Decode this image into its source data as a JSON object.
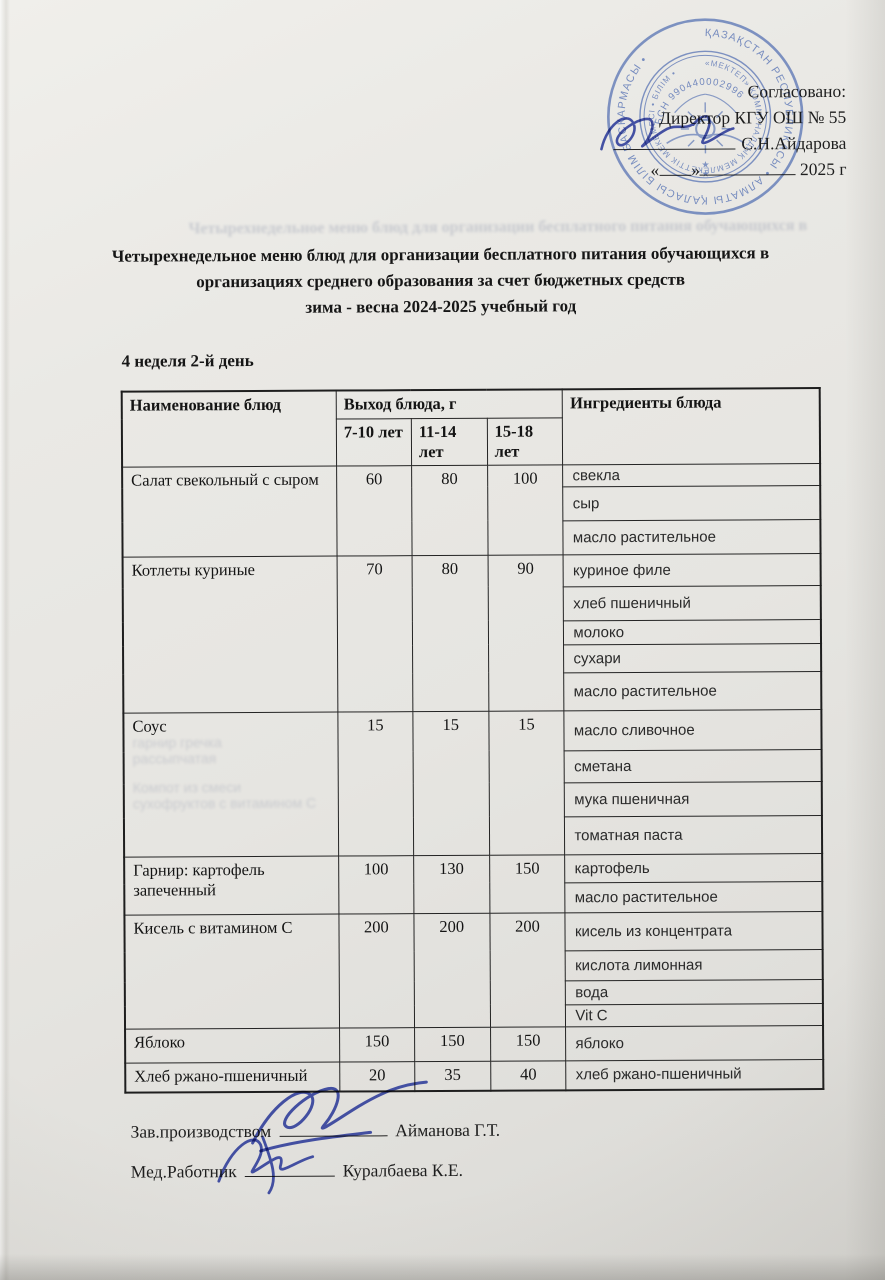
{
  "approval": {
    "agreed": "Согласовано:",
    "director_title": "Директор КГУ ОШ № 55",
    "director_name": "С.Н.Айдарова",
    "date_open_quote": "«",
    "date_close_quote": "»",
    "date_year": "2025 г"
  },
  "stamp": {
    "outer_text": "ҚАЗАҚСТАН РЕСПУБЛИКАСЫ • АЛМАТЫ ҚАЛАСЫ БІЛІМ БАСҚАРМАСЫ •",
    "inner_text": "«МЕКТЕП» КОММУНАЛДЫҚ МЕМЛЕКЕТТІК МЕКЕМЕСІ • БІЛІМ •",
    "bin": "БСН 990440002996",
    "color": "#4a68b0"
  },
  "title": {
    "line1": "Четырехнедельное меню блюд для организации бесплатного питания обучающихся в",
    "line2": "организациях среднего образования за счет бюджетных средств",
    "line3": "зима - весна 2024-2025 учебный год"
  },
  "subtitle": "4 неделя 2-й день",
  "bleed_through": {
    "above_title": "Четырехнедельное меню блюд для организации бесплатного питания обучающихся в",
    "dish_ghost_1": "гарнир гречка рассыпчатая",
    "dish_ghost_2": "Компот из смеси сухофруктов с витамином С"
  },
  "table": {
    "headers": {
      "dish": "Наименование блюд",
      "output": "Выход блюда, г",
      "age1": "7-10 лет",
      "age2": "11-14 лет",
      "age3": "15-18 лет",
      "ingredients": "Ингредиенты блюда"
    },
    "rows": [
      {
        "dish": "Салат свекольный с сыром",
        "g1": "60",
        "g2": "80",
        "g3": "100",
        "ingredients": [
          "свекла",
          "сыр",
          "масло растительное"
        ]
      },
      {
        "dish": "Котлеты куриные",
        "g1": "70",
        "g2": "80",
        "g3": "90",
        "ingredients": [
          "куриное филе",
          "хлеб пшеничный",
          "молоко",
          "сухари",
          "масло растительное"
        ]
      },
      {
        "dish": "Соус",
        "g1": "15",
        "g2": "15",
        "g3": "15",
        "ingredients": [
          "масло сливочное",
          "сметана",
          "мука пшеничная",
          "томатная паста"
        ]
      },
      {
        "dish": "Гарнир: картофель запеченный",
        "g1": "100",
        "g2": "130",
        "g3": "150",
        "ingredients": [
          "картофель",
          "масло растительное"
        ]
      },
      {
        "dish": "Кисель с витамином С",
        "g1": "200",
        "g2": "200",
        "g3": "200",
        "ingredients": [
          "кисель из концентрата",
          "кислота лимонная",
          "вода",
          "Vit C"
        ]
      },
      {
        "dish": "Яблоко",
        "g1": "150",
        "g2": "150",
        "g3": "150",
        "ingredients": [
          "яблоко"
        ]
      },
      {
        "dish": "Хлеб ржано-пшеничный",
        "g1": "20",
        "g2": "35",
        "g3": "40",
        "ingredients": [
          "хлеб ржано-пшеничный"
        ]
      }
    ]
  },
  "signatures": {
    "production_label": "Зав.производством",
    "production_name": "Айманова Г.Т.",
    "medical_label": "Мед.Работник",
    "medical_name": "Куралбаева К.Е."
  }
}
